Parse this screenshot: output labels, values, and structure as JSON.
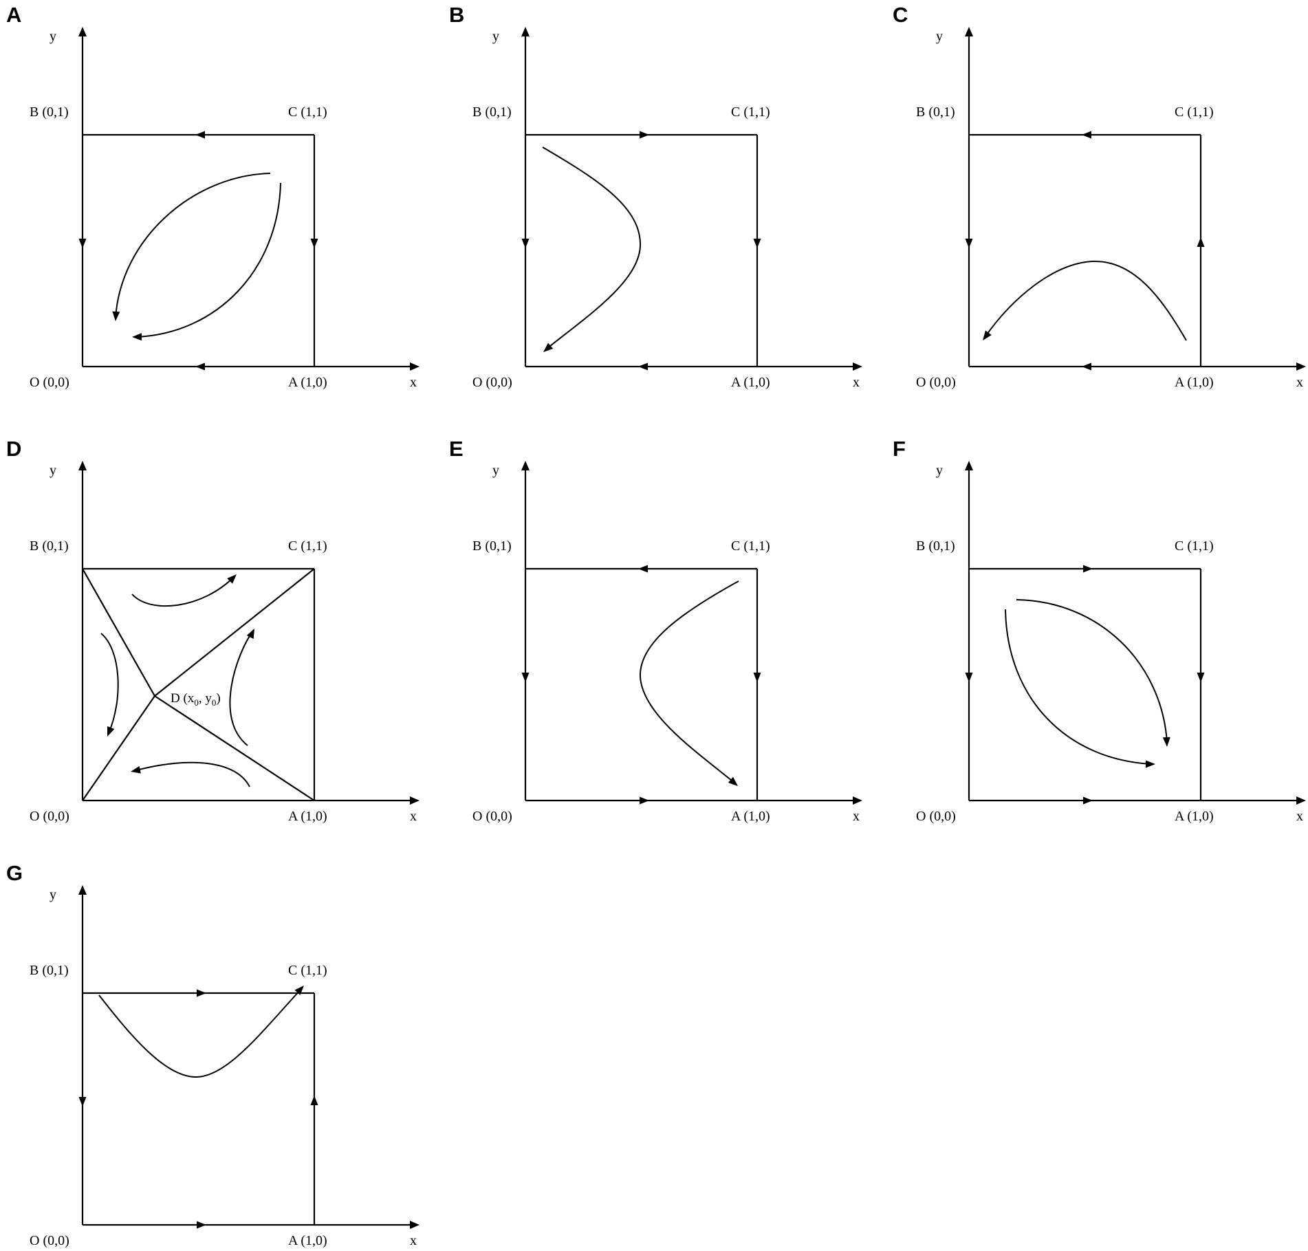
{
  "labels": {
    "y": "y",
    "x": "x",
    "B": "B (0,1)",
    "C": "C (1,1)",
    "O": "O (0,0)",
    "A": "A (1,0)",
    "D_main": "D (x",
    "D_sub0": "0",
    "D_comma": ", y",
    "D_sub1": "0",
    "D_close": ")"
  },
  "colors": {
    "ink": "#000000",
    "background": "#ffffff"
  },
  "panels": [
    {
      "letter": "A",
      "edges": {
        "top": "left",
        "bottom": "left",
        "left": "down",
        "right": "down"
      },
      "flow": "paired curved trajectories in the interior sweeping toward the lower-left corner O"
    },
    {
      "letter": "B",
      "edges": {
        "top": "right",
        "bottom": "left",
        "left": "down",
        "right": "down"
      },
      "flow": "curve bulging to the right, ending with an arrow toward O"
    },
    {
      "letter": "C",
      "edges": {
        "top": "left",
        "bottom": "left",
        "left": "down",
        "right": "up"
      },
      "flow": "arched curve from near A ending with an arrow toward O"
    },
    {
      "letter": "D",
      "edges": {},
      "flow": "saddle point D with separatrices to all four corners; trajectories in the four regions"
    },
    {
      "letter": "E",
      "edges": {
        "top": "left",
        "bottom": "right",
        "left": "down",
        "right": "down"
      },
      "flow": "curve bulging to the left, ending with an arrow toward A"
    },
    {
      "letter": "F",
      "edges": {
        "top": "right",
        "bottom": "right",
        "left": "down",
        "right": "down"
      },
      "flow": "paired curved trajectories sweeping toward the lower-right corner A"
    },
    {
      "letter": "G",
      "edges": {
        "top": "right",
        "bottom": "right",
        "left": "down",
        "right": "up"
      },
      "flow": "U-shaped curve ending with an arrow toward C"
    }
  ]
}
